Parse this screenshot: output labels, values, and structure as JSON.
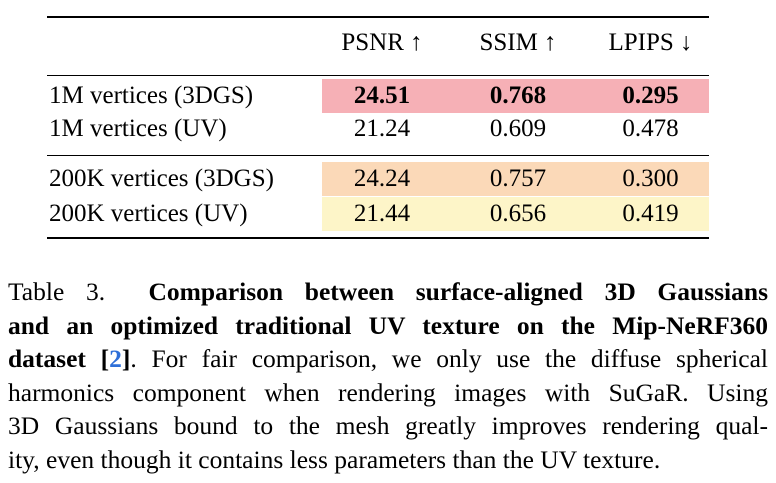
{
  "table": {
    "headers": [
      "PSNR ↑",
      "SSIM ↑",
      "LPIPS ↓"
    ],
    "rows": [
      {
        "label": "1M vertices (3DGS)",
        "psnr": "24.51",
        "ssim": "0.768",
        "lpips": "0.295"
      },
      {
        "label": "1M vertices (UV)",
        "psnr": "21.24",
        "ssim": "0.609",
        "lpips": "0.478"
      },
      {
        "label": "200K vertices (3DGS)",
        "psnr": "24.24",
        "ssim": "0.757",
        "lpips": "0.300"
      },
      {
        "label": "200K vertices (UV)",
        "psnr": "21.44",
        "ssim": "0.656",
        "lpips": "0.419"
      }
    ],
    "colors": {
      "best": "#f6b0b6",
      "second": "#fbd9b8",
      "third": "#fdf5c8"
    }
  },
  "caption": {
    "prefix": "Table 3.",
    "bold_line1": "Comparison between surface-aligned 3D Gaussians",
    "bold_line2": "and an optimized traditional UV texture on the Mip-NeRF360",
    "bold_line3a": "dataset [",
    "ref": "2",
    "bold_line3b": "]",
    "text_line3": ". For fair comparison, we only use the diffuse spherical",
    "text_line4": "harmonics component when rendering images with SuGaR. Using",
    "text_line5": "3D Gaussians bound to the mesh greatly improves rendering qual-",
    "text_line6": "ity, even though it contains less parameters than the UV texture."
  }
}
